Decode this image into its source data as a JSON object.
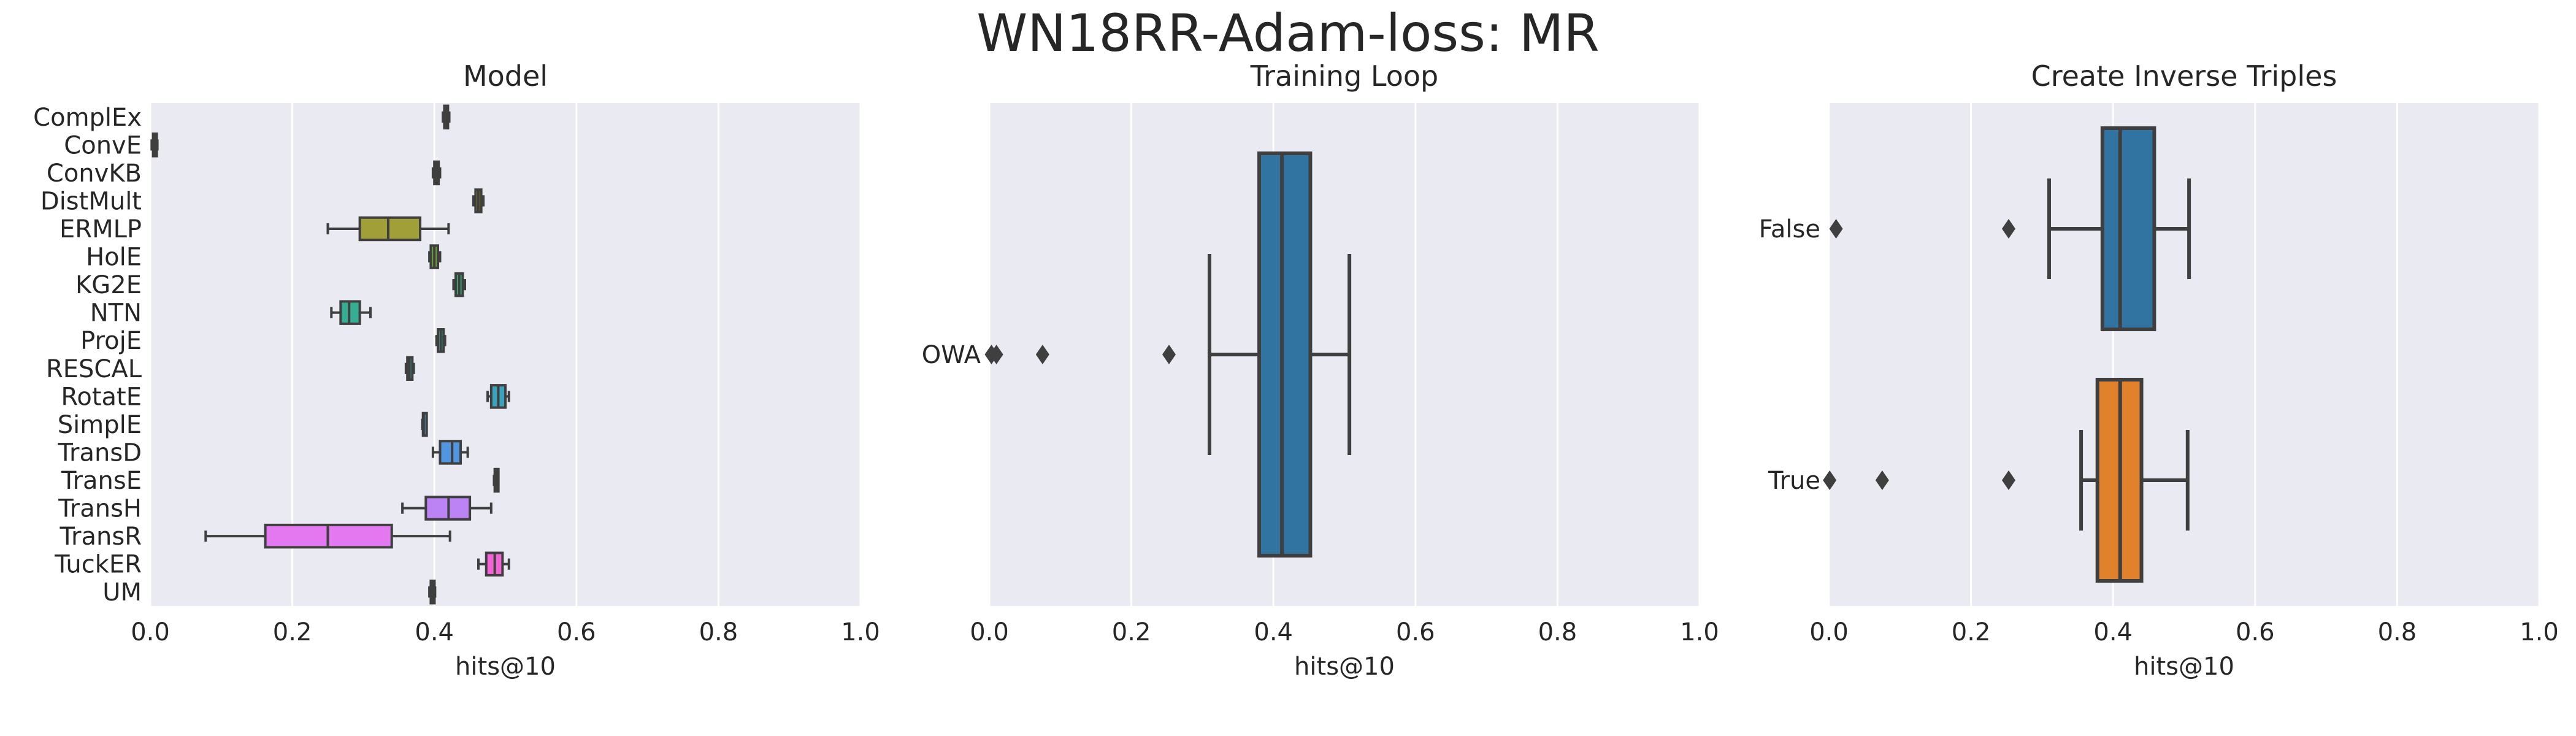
{
  "figure": {
    "title": "WN18RR-Adam-loss: MR"
  },
  "colors": {
    "panel_bg": "#eaeaf2",
    "grid": "#ffffff",
    "line": "#3f3f3f",
    "text": "#262626"
  },
  "chart_data": [
    {
      "type": "box",
      "orientation": "horizontal",
      "title": "Model",
      "xlabel": "hits@10",
      "xlim": [
        0.0,
        1.0
      ],
      "xticks": [
        "0.0",
        "0.2",
        "0.4",
        "0.6",
        "0.8",
        "1.0"
      ],
      "grid": true,
      "categories": [
        "ComplEx",
        "ConvE",
        "ConvKB",
        "DistMult",
        "ERMLP",
        "HolE",
        "KG2E",
        "NTN",
        "ProjE",
        "RESCAL",
        "RotatE",
        "SimplE",
        "TransD",
        "TransE",
        "TransH",
        "TransR",
        "TuckER",
        "UM"
      ],
      "boxes": [
        {
          "name": "ComplEx",
          "min": 0.412,
          "q1": 0.414,
          "median": 0.416,
          "q3": 0.419,
          "max": 0.421,
          "color": "#f77189",
          "outliers": []
        },
        {
          "name": "ConvE",
          "min": 0.002,
          "q1": 0.004,
          "median": 0.006,
          "q3": 0.008,
          "max": 0.01,
          "color": "#e8823d",
          "outliers": []
        },
        {
          "name": "ConvKB",
          "min": 0.398,
          "q1": 0.4,
          "median": 0.403,
          "q3": 0.406,
          "max": 0.408,
          "color": "#c89135",
          "outliers": []
        },
        {
          "name": "DistMult",
          "min": 0.455,
          "q1": 0.458,
          "median": 0.462,
          "q3": 0.466,
          "max": 0.469,
          "color": "#ae9d31",
          "outliers": []
        },
        {
          "name": "ERMLP",
          "min": 0.25,
          "q1": 0.295,
          "median": 0.335,
          "q3": 0.38,
          "max": 0.42,
          "color": "#a19f37",
          "outliers": []
        },
        {
          "name": "HolE",
          "min": 0.393,
          "q1": 0.395,
          "median": 0.4,
          "q3": 0.405,
          "max": 0.408,
          "color": "#6ea831",
          "outliers": []
        },
        {
          "name": "KG2E",
          "min": 0.427,
          "q1": 0.43,
          "median": 0.435,
          "q3": 0.44,
          "max": 0.443,
          "color": "#33b07a",
          "outliers": []
        },
        {
          "name": "NTN",
          "min": 0.255,
          "q1": 0.268,
          "median": 0.28,
          "q3": 0.295,
          "max": 0.31,
          "color": "#35ae93",
          "outliers": []
        },
        {
          "name": "ProjE",
          "min": 0.403,
          "q1": 0.405,
          "median": 0.409,
          "q3": 0.413,
          "max": 0.415,
          "color": "#36ada4",
          "outliers": []
        },
        {
          "name": "RESCAL",
          "min": 0.36,
          "q1": 0.362,
          "median": 0.365,
          "q3": 0.369,
          "max": 0.371,
          "color": "#38aab3",
          "outliers": []
        },
        {
          "name": "RotatE",
          "min": 0.475,
          "q1": 0.48,
          "median": 0.49,
          "q3": 0.5,
          "max": 0.505,
          "color": "#3ba3bc",
          "outliers": []
        },
        {
          "name": "SimplE",
          "min": 0.383,
          "q1": 0.384,
          "median": 0.385,
          "q3": 0.386,
          "max": 0.387,
          "color": "#3e9dc8",
          "outliers": []
        },
        {
          "name": "TransD",
          "min": 0.398,
          "q1": 0.408,
          "median": 0.425,
          "q3": 0.437,
          "max": 0.447,
          "color": "#5096e0",
          "outliers": []
        },
        {
          "name": "TransE",
          "min": 0.484,
          "q1": 0.485,
          "median": 0.487,
          "q3": 0.489,
          "max": 0.49,
          "color": "#8e8ff4",
          "outliers": []
        },
        {
          "name": "TransH",
          "min": 0.355,
          "q1": 0.388,
          "median": 0.42,
          "q3": 0.45,
          "max": 0.48,
          "color": "#bb83f4",
          "outliers": []
        },
        {
          "name": "TransR",
          "min": 0.078,
          "q1": 0.162,
          "median": 0.25,
          "q3": 0.34,
          "max": 0.422,
          "color": "#e378f1",
          "outliers": []
        },
        {
          "name": "TuckER",
          "min": 0.462,
          "q1": 0.473,
          "median": 0.485,
          "q3": 0.496,
          "max": 0.505,
          "color": "#f564d4",
          "outliers": []
        },
        {
          "name": "UM",
          "min": 0.393,
          "q1": 0.395,
          "median": 0.397,
          "q3": 0.399,
          "max": 0.401,
          "color": "#f66bad",
          "outliers": []
        }
      ]
    },
    {
      "type": "box",
      "orientation": "horizontal",
      "title": "Training Loop",
      "xlabel": "hits@10",
      "xlim": [
        0.0,
        1.0
      ],
      "xticks": [
        "0.0",
        "0.2",
        "0.4",
        "0.6",
        "0.8",
        "1.0"
      ],
      "grid": true,
      "categories": [
        "OWA"
      ],
      "boxes": [
        {
          "name": "OWA",
          "min": 0.31,
          "q1": 0.38,
          "median": 0.412,
          "q3": 0.452,
          "max": 0.507,
          "color": "#3274a1",
          "outliers": [
            0.003,
            0.01,
            0.075,
            0.253
          ]
        }
      ]
    },
    {
      "type": "box",
      "orientation": "horizontal",
      "title": "Create Inverse Triples",
      "xlabel": "hits@10",
      "xlim": [
        0.0,
        1.0
      ],
      "xticks": [
        "0.0",
        "0.2",
        "0.4",
        "0.6",
        "0.8",
        "1.0"
      ],
      "grid": true,
      "categories": [
        "False",
        "True"
      ],
      "boxes": [
        {
          "name": "False",
          "min": 0.31,
          "q1": 0.385,
          "median": 0.41,
          "q3": 0.458,
          "max": 0.507,
          "color": "#3274a1",
          "outliers": [
            0.01,
            0.253
          ]
        },
        {
          "name": "True",
          "min": 0.355,
          "q1": 0.378,
          "median": 0.41,
          "q3": 0.44,
          "max": 0.505,
          "color": "#e1812c",
          "outliers": [
            0.001,
            0.075,
            0.253
          ]
        }
      ]
    }
  ]
}
